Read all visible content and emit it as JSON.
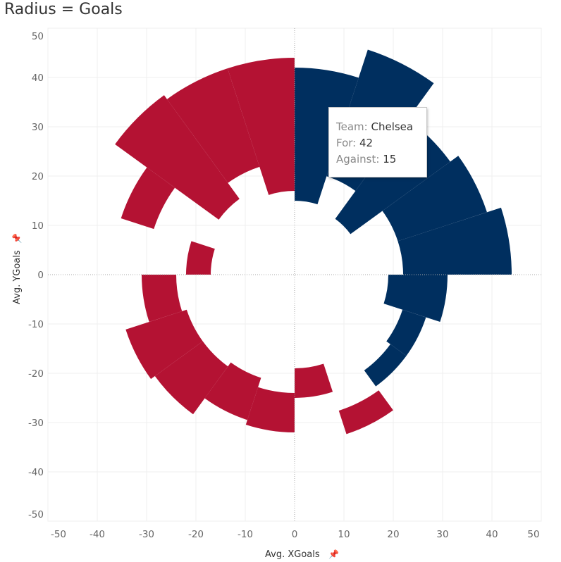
{
  "chart_data": {
    "type": "radial-bar",
    "title": "Radius = Goals",
    "xlabel": "Avg. XGoals",
    "ylabel": "Avg. YGoals",
    "xlim": [
      -50,
      50
    ],
    "ylim": [
      -50,
      50
    ],
    "xticks": [
      -50,
      -40,
      -30,
      -20,
      -10,
      0,
      10,
      20,
      30,
      40,
      50
    ],
    "yticks": [
      50,
      40,
      30,
      20,
      10,
      0,
      -10,
      -20,
      -30,
      -40,
      -50
    ],
    "grid": true,
    "colors": {
      "blue": "#002f5f",
      "red": "#b41233",
      "grid": "#efefef",
      "zero": "#aaaaaa"
    },
    "wedges": [
      {
        "inner": 15,
        "outer": 42,
        "color": "blue"
      },
      {
        "inner": 21,
        "outer": 48,
        "color": "blue"
      },
      {
        "inner": 14,
        "outer": 39,
        "color": "blue"
      },
      {
        "inner": 22,
        "outer": 41,
        "color": "blue"
      },
      {
        "inner": 22,
        "outer": 44,
        "color": "blue"
      },
      {
        "inner": 19,
        "outer": 31,
        "color": "blue"
      },
      {
        "inner": 23,
        "outer": 28,
        "color": "blue"
      },
      {
        "inner": 24,
        "outer": 28,
        "color": "blue"
      },
      {
        "inner": 29,
        "outer": 34,
        "color": "red"
      },
      {
        "inner": 19,
        "outer": 25,
        "color": "red"
      },
      {
        "inner": 24,
        "outer": 32,
        "color": "red"
      },
      {
        "inner": 22,
        "outer": 31,
        "color": "red"
      },
      {
        "inner": 23,
        "outer": 35,
        "color": "red"
      },
      {
        "inner": 23,
        "outer": 36,
        "color": "red"
      },
      {
        "inner": 24,
        "outer": 31,
        "color": "red"
      },
      {
        "inner": 17,
        "outer": 22,
        "color": "red"
      },
      {
        "inner": 30,
        "outer": 37,
        "color": "red"
      },
      {
        "inner": 19,
        "outer": 45,
        "color": "red"
      },
      {
        "inner": 23,
        "outer": 44,
        "color": "red"
      },
      {
        "inner": 17,
        "outer": 44,
        "color": "red"
      }
    ]
  },
  "tooltip": {
    "team_label": "Team:",
    "team": "Chelsea",
    "for_label": "For:",
    "for": "42",
    "against_label": "Against:",
    "against": "15"
  }
}
